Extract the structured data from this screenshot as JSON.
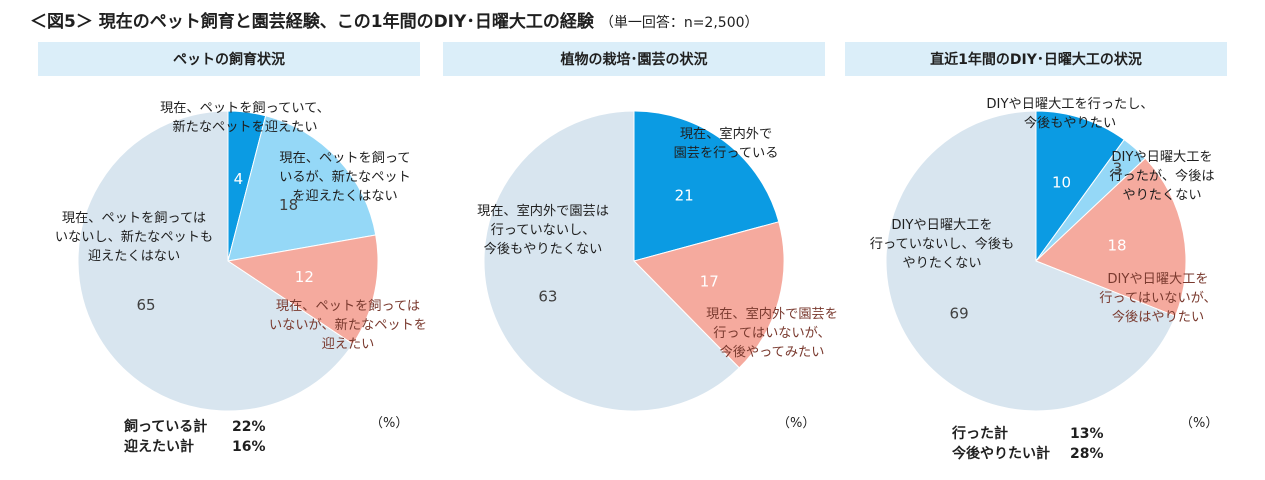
{
  "title": "＜図5＞ 現在のペット飼育と園芸経験、この1年間のDIY･日曜大工の経験",
  "subtitle": "（単一回答：n=2,500）",
  "colors": {
    "header_bg": "#dbeef9",
    "slice_1": "#0b9be3",
    "slice_2": "#95d8f7",
    "slice_3": "#f5aa9e",
    "slice_4": "#d8e5ef",
    "label_dark": "#1f1f1f",
    "label_light": "#ffffff",
    "label_red": "#7a3a2f"
  },
  "chart_data": [
    {
      "type": "pie",
      "title": "ペットの飼育状況",
      "unit": "（%）",
      "slices": [
        {
          "value": 4,
          "label": [
            "現在、ペットを飼っていて、",
            "新たなペットを迎えたい"
          ]
        },
        {
          "value": 18,
          "label": [
            "現在、ペットを飼って",
            "いるが、新たなペット",
            "を迎えたくはない"
          ]
        },
        {
          "value": 12,
          "label": [
            "現在、ペットを飼っては",
            "いないが、新たなペットを",
            "迎えたい"
          ]
        },
        {
          "value": 65,
          "label": [
            "現在、ペットを飼っては",
            "いないし、新たなペットも",
            "迎えたくはない"
          ]
        }
      ],
      "totals": [
        {
          "label": "飼っている計",
          "value": "22%"
        },
        {
          "label": "迎えたい計",
          "value": "16%"
        }
      ]
    },
    {
      "type": "pie",
      "title": "植物の栽培･園芸の状況",
      "unit": "（%）",
      "slices": [
        {
          "value": 21,
          "label": [
            "現在、室内外で",
            "園芸を行っている"
          ]
        },
        {
          "value": 17,
          "label": [
            "現在、室内外で園芸を",
            "行ってはいないが、",
            "今後やってみたい"
          ]
        },
        {
          "value": 63,
          "label": [
            "現在、室内外で園芸は",
            "行っていないし、",
            "今後もやりたくない"
          ]
        }
      ],
      "totals": []
    },
    {
      "type": "pie",
      "title": "直近1年間のDIY･日曜大工の状況",
      "unit": "（%）",
      "slices": [
        {
          "value": 10,
          "label": [
            "DIYや日曜大工を行ったし、",
            "今後もやりたい"
          ]
        },
        {
          "value": 3,
          "label": [
            "DIYや日曜大工を",
            "行ったが、今後は",
            "やりたくない"
          ]
        },
        {
          "value": 18,
          "label": [
            "DIYや日曜大工を",
            "行ってはいないが、",
            "今後はやりたい"
          ]
        },
        {
          "value": 69,
          "label": [
            "DIYや日曜大工を",
            "行っていないし、今後も",
            "やりたくない"
          ]
        }
      ],
      "totals": [
        {
          "label": "行った計",
          "value": "13%"
        },
        {
          "label": "今後やりたい計",
          "value": "28%"
        }
      ]
    }
  ]
}
